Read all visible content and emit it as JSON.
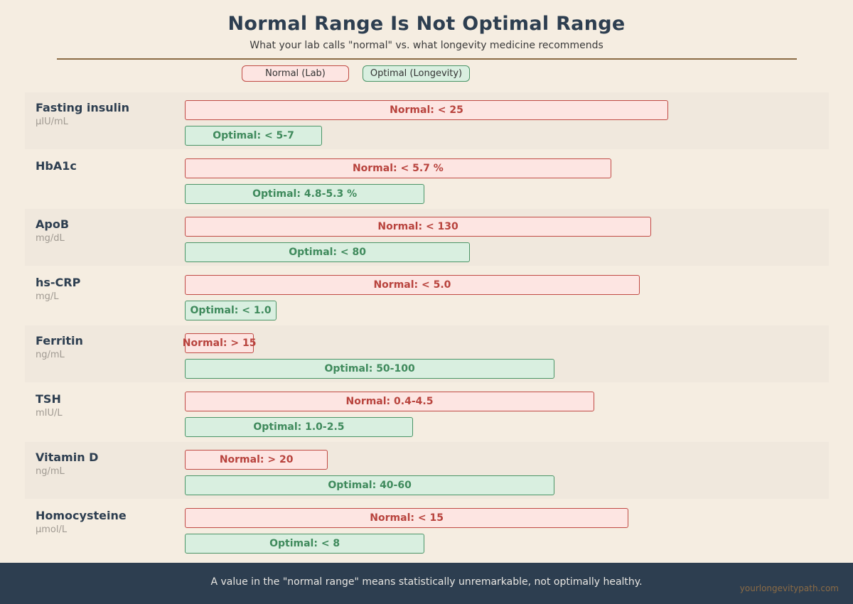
{
  "title": "Normal Range Is Not Optimal Range",
  "subtitle": "What your lab calls \"normal\" vs. what longevity medicine recommends",
  "legend": {
    "normal": "Normal (Lab)",
    "optimal": "Optimal (Longevity)"
  },
  "footer": {
    "text": "A value in the \"normal range\" means statistically unremarkable, not optimally healthy.",
    "brand": "yourlongevitypath.com"
  },
  "colors": {
    "normal_fill": "#fde5e2",
    "normal_border": "#c04a44",
    "optimal_fill": "#d9efe0",
    "optimal_border": "#4a9466",
    "footer_bg": "#2d3e50",
    "accent": "#8b6b45"
  },
  "chart_data": {
    "type": "bar",
    "orientation": "horizontal",
    "rows": [
      {
        "name": "Fasting insulin",
        "unit": "μIU/mL",
        "normal_label": "Normal: < 25",
        "normal_bar": [
          0,
          1.0
        ],
        "optimal_label": "Optimal: < 5-7",
        "optimal_bar": [
          0,
          0.284
        ]
      },
      {
        "name": "HbA1c",
        "unit": "",
        "normal_label": "Normal: < 5.7 %",
        "normal_bar": [
          0,
          0.882
        ],
        "optimal_label": "Optimal: 4.8-5.3 %",
        "optimal_bar": [
          0,
          0.496
        ]
      },
      {
        "name": "ApoB",
        "unit": "mg/dL",
        "normal_label": "Normal: < 130",
        "normal_bar": [
          0,
          0.965
        ],
        "optimal_label": "Optimal: < 80",
        "optimal_bar": [
          0,
          0.59
        ]
      },
      {
        "name": "hs-CRP",
        "unit": "mg/L",
        "normal_label": "Normal: < 5.0",
        "normal_bar": [
          0,
          0.941
        ],
        "optimal_label": "Optimal: < 1.0",
        "optimal_bar": [
          0,
          0.19
        ]
      },
      {
        "name": "Ferritin",
        "unit": "ng/mL",
        "normal_label": "Normal: > 15",
        "normal_bar": [
          0,
          0.143
        ],
        "optimal_label": "Optimal: 50-100",
        "optimal_bar": [
          0,
          0.765
        ]
      },
      {
        "name": "TSH",
        "unit": "mIU/L",
        "normal_label": "Normal: 0.4-4.5",
        "normal_bar": [
          0,
          0.847
        ],
        "optimal_label": "Optimal: 1.0-2.5",
        "optimal_bar": [
          0,
          0.472
        ]
      },
      {
        "name": "Vitamin D",
        "unit": "ng/mL",
        "normal_label": "Normal: > 20",
        "normal_bar": [
          0,
          0.296
        ],
        "optimal_label": "Optimal: 40-60",
        "optimal_bar": [
          0,
          0.765
        ]
      },
      {
        "name": "Homocysteine",
        "unit": "μmol/L",
        "normal_label": "Normal: < 15",
        "normal_bar": [
          0,
          0.918
        ],
        "optimal_label": "Optimal: < 8",
        "optimal_bar": [
          0,
          0.496
        ]
      }
    ]
  }
}
